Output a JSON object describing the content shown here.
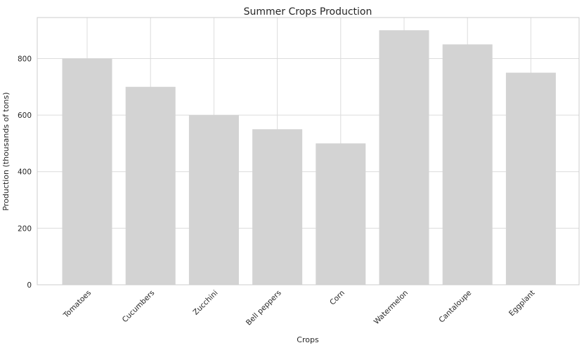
{
  "chart_data": {
    "type": "bar",
    "title": "Summer Crops Production",
    "xlabel": "Crops",
    "ylabel": "Production (thousands of tons)",
    "categories": [
      "Tomatoes",
      "Cucumbers",
      "Zucchini",
      "Bell peppers",
      "Corn",
      "Watermelon",
      "Cantaloupe",
      "Eggplant"
    ],
    "values": [
      800,
      700,
      600,
      550,
      500,
      900,
      850,
      750
    ],
    "yticks": [
      0,
      200,
      400,
      600,
      800
    ],
    "ylim": [
      0,
      945
    ],
    "grid": true,
    "bar_color": "#d3d3d3",
    "grid_color": "#dcdcdc"
  }
}
